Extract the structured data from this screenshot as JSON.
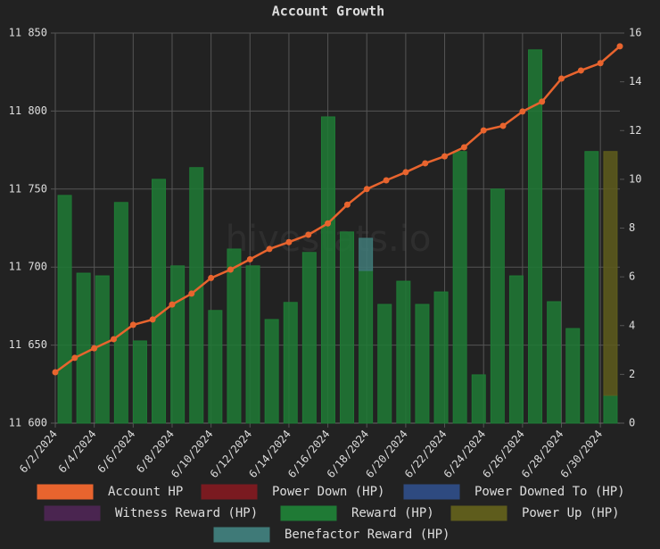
{
  "chart_data": {
    "type": "bar",
    "title": "Account Growth",
    "watermark": "hivestats.io",
    "categories": [
      "6/2/2024",
      null,
      "6/4/2024",
      null,
      "6/6/2024",
      null,
      "6/8/2024",
      null,
      "6/10/2024",
      null,
      "6/12/2024",
      null,
      "6/14/2024",
      null,
      "6/16/2024",
      null,
      "6/18/2024",
      null,
      "6/20/2024",
      null,
      "6/22/2024",
      null,
      "6/24/2024",
      null,
      "6/26/2024",
      null,
      "6/28/2024",
      null,
      "6/30/2024",
      null
    ],
    "ylim": [
      11600,
      11850
    ],
    "yticks": [
      {
        "value": 11600,
        "label": "11 600"
      },
      {
        "value": 11650,
        "label": "11 650"
      },
      {
        "value": 11700,
        "label": "11 700"
      },
      {
        "value": 11750,
        "label": "11 750"
      },
      {
        "value": 11800,
        "label": "11 800"
      },
      {
        "value": 11850,
        "label": "11 850"
      }
    ],
    "y2lim": [
      0,
      16
    ],
    "y2ticks": [
      0,
      2,
      4,
      6,
      8,
      10,
      12,
      14,
      16
    ],
    "grid": true,
    "series": [
      {
        "name": "Account HP",
        "type": "line",
        "axis": "y",
        "color": "#e8642e",
        "values": [
          11632.6,
          11641.8,
          11648,
          11653.8,
          11663,
          11666.4,
          11676,
          11683,
          11693,
          11698.4,
          11705,
          11711.6,
          11716,
          11720.7,
          11728,
          11740,
          11750,
          11755.6,
          11760.8,
          11766.5,
          11771,
          11776.8,
          11787.6,
          11790.5,
          11799.7,
          11806,
          11820.8,
          11826,
          11830.7,
          11841.5
        ]
      },
      {
        "name": "Power Down (HP)",
        "type": "bar",
        "axis": "y2",
        "color": "#7a1a20",
        "values": [
          0,
          0,
          0,
          0,
          0,
          0,
          0,
          0,
          0,
          0,
          0,
          0,
          0,
          0,
          0,
          0,
          0,
          0,
          0,
          0,
          0,
          0,
          0,
          0,
          0,
          0,
          0,
          0,
          0,
          0
        ]
      },
      {
        "name": "Power Downed To (HP)",
        "type": "bar",
        "axis": "y2",
        "color": "#2e4a80",
        "values": [
          0,
          0,
          0,
          0,
          0,
          0,
          0,
          0,
          0,
          0,
          0,
          0,
          0,
          0,
          0,
          0,
          0,
          0,
          0,
          0,
          0,
          0,
          0,
          0,
          0,
          0,
          0,
          0,
          0,
          0
        ]
      },
      {
        "name": "Witness Reward (HP)",
        "type": "bar",
        "axis": "y2",
        "color": "#4a2550",
        "values": [
          0,
          0,
          0,
          0,
          0,
          0,
          0,
          0,
          0,
          0,
          0,
          0,
          0,
          0,
          0,
          0,
          0,
          0,
          0,
          0,
          0,
          0,
          0,
          0,
          0,
          0,
          0,
          0,
          0,
          0
        ]
      },
      {
        "name": "Reward (HP)",
        "type": "bar",
        "axis": "y2",
        "color": "#1f7a35",
        "values": [
          9.34,
          6.15,
          6.04,
          9.05,
          3.37,
          10.0,
          6.45,
          10.48,
          4.62,
          7.14,
          6.45,
          4.25,
          4.95,
          7.0,
          12.56,
          7.84,
          6.26,
          4.87,
          5.82,
          4.87,
          5.38,
          11.14,
          1.98,
          9.6,
          6.04,
          15.31,
          4.98,
          3.88,
          11.14,
          1.14
        ]
      },
      {
        "name": "Power Up (HP)",
        "type": "bar",
        "axis": "y2",
        "color": "#5e5c1c",
        "values": [
          0,
          0,
          0,
          0,
          0,
          0,
          0,
          0,
          0,
          0,
          0,
          0,
          0,
          0,
          0,
          0,
          0,
          0,
          0,
          0,
          0,
          0,
          0,
          0,
          0,
          0,
          0,
          0,
          0,
          10.0
        ]
      },
      {
        "name": "Benefactor Reward (HP)",
        "type": "bar",
        "axis": "y2",
        "color": "#3f7a78",
        "values": [
          0,
          0,
          0,
          0,
          0,
          0,
          0,
          0,
          0,
          0,
          0,
          0,
          0,
          0,
          0,
          0,
          1.32,
          0,
          0,
          0,
          0,
          0,
          0,
          0,
          0,
          0,
          0,
          0,
          0,
          0
        ]
      }
    ]
  }
}
